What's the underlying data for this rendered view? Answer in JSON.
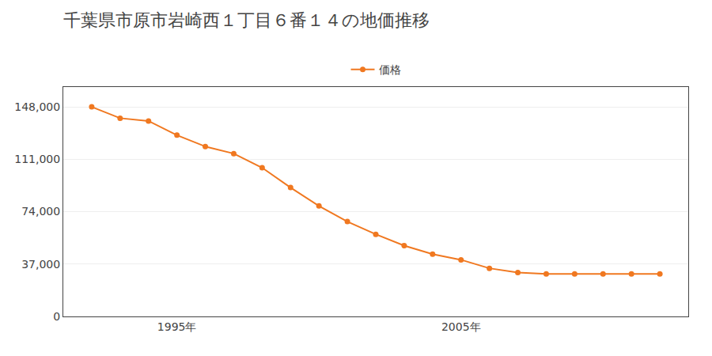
{
  "chart_data": {
    "type": "line",
    "title": "千葉県市原市岩崎西１丁目６番１４の地価推移",
    "x": [
      1992,
      1993,
      1994,
      1995,
      1996,
      1997,
      1998,
      1999,
      2000,
      2001,
      2002,
      2003,
      2004,
      2005,
      2006,
      2007,
      2008,
      2009,
      2010,
      2011,
      2012
    ],
    "series": [
      {
        "name": "価格",
        "color": "#f07820",
        "values": [
          148000,
          140000,
          138000,
          128000,
          120000,
          115000,
          105000,
          91000,
          78000,
          67000,
          58000,
          50000,
          44000,
          40000,
          34000,
          31000,
          30000,
          30000,
          30000,
          30000,
          30000
        ]
      }
    ],
    "xlim": [
      1991,
      2013
    ],
    "xticks": [
      {
        "value": 1995,
        "label": "1995年"
      },
      {
        "value": 2005,
        "label": "2005年"
      }
    ],
    "ylim": [
      0,
      162000
    ],
    "yticks": [
      0,
      {
        "value": 37000,
        "label": "37,000"
      },
      {
        "value": 74000,
        "label": "74,000"
      },
      {
        "value": 111000,
        "label": "111,000"
      },
      {
        "value": 148000,
        "label": "148,000"
      }
    ],
    "grid": "y",
    "legend": "top",
    "marker": "circle"
  }
}
